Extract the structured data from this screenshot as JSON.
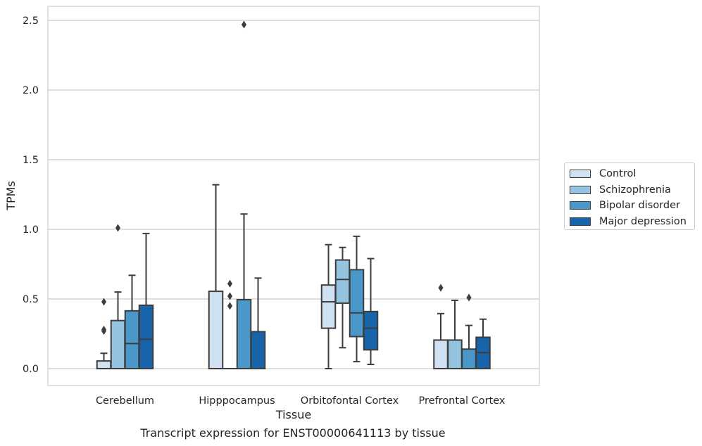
{
  "chart_data": {
    "type": "boxplot",
    "title": "",
    "caption": "Transcript expression for ENST00000641113 by tissue",
    "xlabel": "Tissue",
    "ylabel": "TPMs",
    "ylim": [
      -0.12,
      2.6
    ],
    "yticks": [
      0.0,
      0.5,
      1.0,
      1.5,
      2.0,
      2.5
    ],
    "ytick_labels": [
      "0.0",
      "0.5",
      "1.0",
      "1.5",
      "2.0",
      "2.5"
    ],
    "grid": "horizontal",
    "legend_position": "right",
    "categories": [
      "Cerebellum",
      "Hipppocampus",
      "Orbitofontal Cortex",
      "Prefrontal Cortex"
    ],
    "series": [
      {
        "name": "Control",
        "color": "#d0e1f2",
        "boxes": [
          {
            "whislo": 0.0,
            "q1": 0.0,
            "med": 0.0,
            "q3": 0.055,
            "whishi": 0.11,
            "fliers": [
              0.27,
              0.28,
              0.48
            ]
          },
          {
            "whislo": 0.0,
            "q1": 0.0,
            "med": 0.0,
            "q3": 0.555,
            "whishi": 1.32,
            "fliers": []
          },
          {
            "whislo": 0.0,
            "q1": 0.29,
            "med": 0.48,
            "q3": 0.6,
            "whishi": 0.89,
            "fliers": []
          },
          {
            "whislo": 0.0,
            "q1": 0.0,
            "med": 0.0,
            "q3": 0.205,
            "whishi": 0.395,
            "fliers": [
              0.58
            ]
          }
        ]
      },
      {
        "name": "Schizophrenia",
        "color": "#94c4df",
        "boxes": [
          {
            "whislo": 0.0,
            "q1": 0.0,
            "med": 0.0,
            "q3": 0.345,
            "whishi": 0.55,
            "fliers": [
              1.01
            ]
          },
          {
            "whislo": 0.0,
            "q1": 0.0,
            "med": 0.0,
            "q3": 0.0,
            "whishi": 0.0,
            "fliers": [
              0.45,
              0.52,
              0.61
            ]
          },
          {
            "whislo": 0.15,
            "q1": 0.47,
            "med": 0.64,
            "q3": 0.78,
            "whishi": 0.87,
            "fliers": []
          },
          {
            "whislo": 0.0,
            "q1": 0.0,
            "med": 0.0,
            "q3": 0.205,
            "whishi": 0.49,
            "fliers": []
          }
        ]
      },
      {
        "name": "Bipolar disorder",
        "color": "#4a98c9",
        "boxes": [
          {
            "whislo": 0.0,
            "q1": 0.0,
            "med": 0.18,
            "q3": 0.415,
            "whishi": 0.67,
            "fliers": []
          },
          {
            "whislo": 0.0,
            "q1": 0.0,
            "med": 0.0,
            "q3": 0.495,
            "whishi": 1.11,
            "fliers": [
              2.47
            ]
          },
          {
            "whislo": 0.05,
            "q1": 0.23,
            "med": 0.4,
            "q3": 0.71,
            "whishi": 0.95,
            "fliers": []
          },
          {
            "whislo": 0.0,
            "q1": 0.0,
            "med": 0.0,
            "q3": 0.14,
            "whishi": 0.31,
            "fliers": [
              0.51
            ]
          }
        ]
      },
      {
        "name": "Major depression",
        "color": "#1764ab",
        "boxes": [
          {
            "whislo": 0.0,
            "q1": 0.0,
            "med": 0.21,
            "q3": 0.455,
            "whishi": 0.97,
            "fliers": []
          },
          {
            "whislo": 0.0,
            "q1": 0.0,
            "med": 0.0,
            "q3": 0.265,
            "whishi": 0.65,
            "fliers": []
          },
          {
            "whislo": 0.03,
            "q1": 0.135,
            "med": 0.29,
            "q3": 0.41,
            "whishi": 0.79,
            "fliers": []
          },
          {
            "whislo": 0.0,
            "q1": 0.0,
            "med": 0.115,
            "q3": 0.225,
            "whishi": 0.355,
            "fliers": []
          }
        ]
      }
    ]
  }
}
